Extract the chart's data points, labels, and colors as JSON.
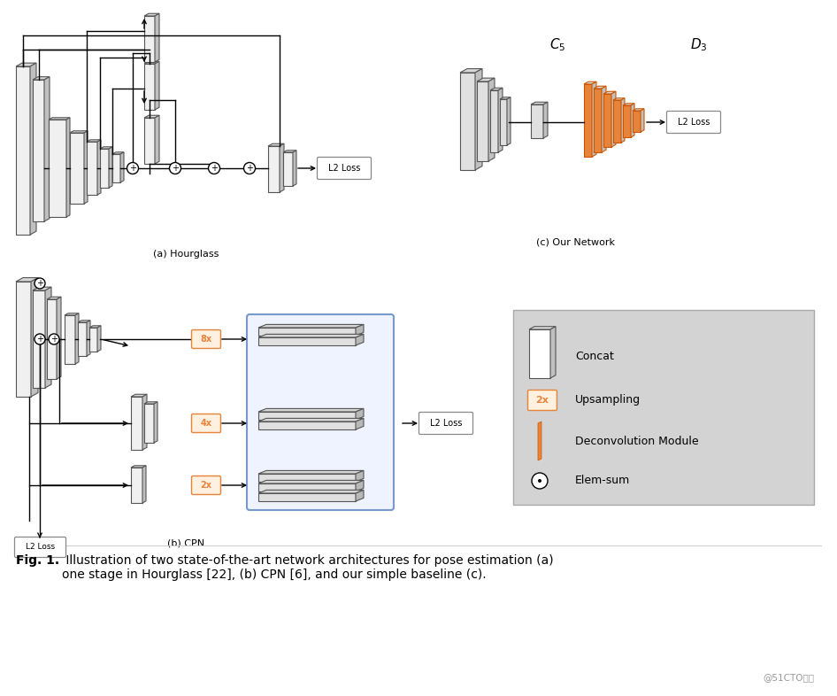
{
  "bg_color": "#ffffff",
  "orange": "#E8833A",
  "orange_light": "#FFF0E0",
  "gray_fc": "#f0f0f0",
  "gray_ec": "#555555",
  "legend_bg": "#d3d3d3",
  "blue_bg": "#EEF3FF",
  "blue_ec": "#7799CC",
  "label_a": "(a) Hourglass",
  "label_b": "(b) CPN",
  "label_c": "(c) Our Network",
  "caption_bold": "Fig. 1.",
  "caption_normal": " Illustration of two state-of-the-art network architectures for pose estimation (a)\none stage in Hourglass [22], (b) CPN [6], and our simple baseline (c).",
  "watermark": "@51CTO博客"
}
